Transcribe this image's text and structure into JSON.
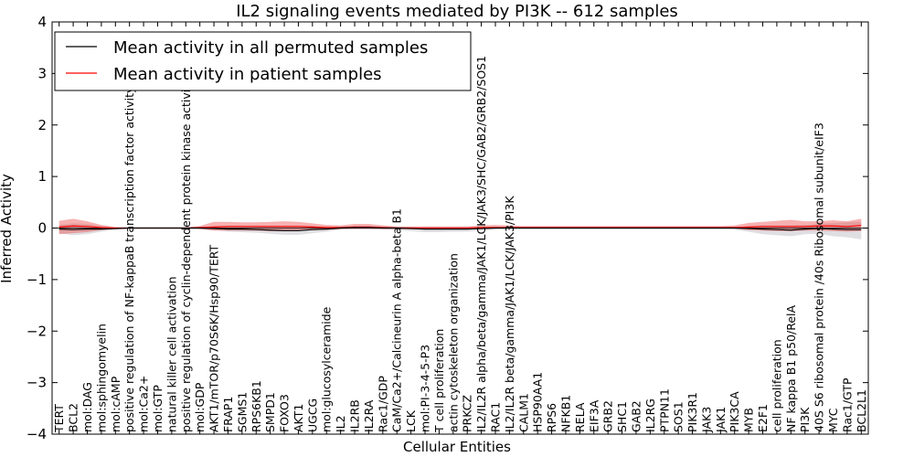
{
  "chart_data": {
    "type": "line",
    "title": "IL2 signaling events mediated by PI3K -- 612 samples",
    "xlabel": "Cellular Entities",
    "ylabel": "Inferred Activity",
    "ylim": [
      -4,
      4
    ],
    "yticks": [
      -4,
      -3,
      -2,
      -1,
      0,
      1,
      2,
      3,
      4
    ],
    "ytick_labels": [
      "−4",
      "−3",
      "−2",
      "−1",
      "0",
      "1",
      "2",
      "3",
      "4"
    ],
    "grid": false,
    "legend_position": "top-left",
    "categories": [
      "TERT",
      "BCL2",
      "mol:DAG",
      "mol:sphingomyelin",
      "mol:cAMP",
      "positive regulation of NF-kappaB transcription factor activity",
      "mol:Ca2+",
      "mol:GTP",
      "natural killer cell activation",
      "positive regulation of cyclin-dependent protein kinase activity",
      "mol:GDP",
      "AKT1/mTOR/p70S6K/Hsp90/TERT",
      "FRAP1",
      "SGMS1",
      "RPS6KB1",
      "SMPD1",
      "FOXO3",
      "AKT1",
      "UGCG",
      "mol:glucosylceramide",
      "IL2",
      "IL2RB",
      "IL2RA",
      "Rac1/GDP",
      "CaM/Ca2+/Calcineurin A alpha-beta B1",
      "LCK",
      "mol:PI-3-4-5-P3",
      "T cell proliferation",
      "actin cytoskeleton organization",
      "PRKCZ",
      "IL2/IL2R alpha/beta/gamma/JAK1/LCK/JAK3/SHC/GAB2/GRB2/SOS1",
      "RAC1",
      "IL2/IL2R beta/gamma/JAK1/LCK/JAK3/PI3K",
      "CALM1",
      "HSP90AA1",
      "RPS6",
      "NFKB1",
      "RELA",
      "EIF3A",
      "GRB2",
      "SHC1",
      "GAB2",
      "IL2RG",
      "PTPN11",
      "SOS1",
      "PIK3R1",
      "JAK3",
      "JAK1",
      "PIK3CA",
      "MYB",
      "E2F1",
      "cell proliferation",
      "NF kappa B1 p50/RelA",
      "PI3K",
      "40S S6 ribosomal protein /40s Ribosomal subunit/eIF3",
      "MYC",
      "Rac1/GTP",
      "BCL2L1"
    ],
    "series": [
      {
        "name": "Mean activity in all permuted samples",
        "color": "#000000",
        "values": [
          -0.02,
          -0.03,
          -0.02,
          -0.02,
          -0.01,
          0.0,
          0.0,
          0.0,
          0.0,
          0.0,
          0.0,
          -0.01,
          -0.02,
          -0.02,
          -0.03,
          -0.04,
          -0.05,
          -0.05,
          -0.03,
          -0.02,
          0.0,
          0.01,
          0.01,
          0.0,
          0.0,
          -0.01,
          -0.02,
          -0.02,
          -0.02,
          -0.02,
          -0.01,
          0.0,
          0.0,
          0.0,
          0.0,
          0.0,
          0.0,
          0.0,
          0.0,
          0.0,
          0.0,
          0.0,
          0.0,
          0.0,
          0.0,
          0.0,
          0.0,
          0.0,
          0.0,
          -0.01,
          -0.02,
          -0.03,
          -0.04,
          -0.02,
          -0.01,
          -0.02,
          -0.03,
          -0.03
        ],
        "band_lower": [
          -0.1,
          -0.14,
          -0.12,
          -0.07,
          -0.03,
          -0.01,
          -0.01,
          -0.01,
          -0.01,
          -0.01,
          -0.02,
          -0.04,
          -0.07,
          -0.08,
          -0.09,
          -0.11,
          -0.13,
          -0.13,
          -0.1,
          -0.07,
          -0.03,
          -0.02,
          -0.02,
          -0.03,
          -0.04,
          -0.06,
          -0.08,
          -0.08,
          -0.07,
          -0.07,
          -0.05,
          -0.03,
          -0.02,
          -0.02,
          -0.02,
          -0.02,
          -0.02,
          -0.02,
          -0.02,
          -0.02,
          -0.02,
          -0.02,
          -0.02,
          -0.02,
          -0.02,
          -0.02,
          -0.02,
          -0.02,
          -0.03,
          -0.07,
          -0.12,
          -0.14,
          -0.16,
          -0.12,
          -0.11,
          -0.16,
          -0.18,
          -0.22
        ],
        "band_upper": [
          0.06,
          0.09,
          0.08,
          0.04,
          0.01,
          0.01,
          0.01,
          0.01,
          0.01,
          0.01,
          0.02,
          0.02,
          0.03,
          0.03,
          0.04,
          0.04,
          0.04,
          0.04,
          0.04,
          0.03,
          0.03,
          0.04,
          0.04,
          0.03,
          0.02,
          0.02,
          0.02,
          0.02,
          0.02,
          0.02,
          0.02,
          0.02,
          0.02,
          0.02,
          0.02,
          0.02,
          0.02,
          0.02,
          0.02,
          0.02,
          0.02,
          0.02,
          0.02,
          0.02,
          0.02,
          0.02,
          0.02,
          0.02,
          0.02,
          0.03,
          0.05,
          0.05,
          0.05,
          0.06,
          0.08,
          0.1,
          0.11,
          0.12
        ]
      },
      {
        "name": "Mean activity in patient samples",
        "color": "#ff0000",
        "values": [
          0.02,
          0.04,
          0.03,
          0.01,
          0.0,
          0.0,
          0.0,
          0.0,
          0.0,
          0.0,
          0.01,
          0.02,
          0.03,
          0.03,
          0.03,
          0.03,
          0.03,
          0.03,
          0.02,
          0.01,
          0.01,
          0.02,
          0.02,
          0.01,
          0.0,
          0.0,
          0.0,
          0.0,
          0.0,
          0.0,
          0.01,
          0.01,
          0.01,
          0.01,
          0.01,
          0.01,
          0.01,
          0.01,
          0.01,
          0.01,
          0.01,
          0.01,
          0.01,
          0.01,
          0.01,
          0.01,
          0.01,
          0.01,
          0.01,
          0.02,
          0.03,
          0.03,
          0.03,
          0.03,
          0.04,
          0.04,
          0.03,
          0.05
        ],
        "band_lower": [
          -0.12,
          -0.1,
          -0.08,
          -0.04,
          -0.02,
          -0.01,
          -0.01,
          -0.01,
          -0.01,
          -0.01,
          -0.02,
          -0.05,
          -0.05,
          -0.05,
          -0.05,
          -0.06,
          -0.06,
          -0.05,
          -0.04,
          -0.03,
          -0.02,
          -0.02,
          -0.02,
          -0.02,
          -0.02,
          -0.02,
          -0.02,
          -0.02,
          -0.02,
          -0.02,
          -0.02,
          -0.01,
          -0.01,
          -0.01,
          -0.01,
          -0.01,
          -0.01,
          -0.01,
          -0.01,
          -0.01,
          -0.01,
          -0.01,
          -0.01,
          -0.01,
          -0.01,
          -0.01,
          -0.01,
          -0.01,
          -0.01,
          -0.04,
          -0.05,
          -0.06,
          -0.06,
          -0.05,
          -0.05,
          -0.06,
          -0.07,
          -0.06
        ],
        "band_upper": [
          0.14,
          0.18,
          0.13,
          0.06,
          0.02,
          0.01,
          0.01,
          0.01,
          0.01,
          0.01,
          0.04,
          0.12,
          0.12,
          0.11,
          0.11,
          0.12,
          0.13,
          0.12,
          0.09,
          0.06,
          0.05,
          0.08,
          0.08,
          0.05,
          0.03,
          0.03,
          0.03,
          0.03,
          0.03,
          0.03,
          0.05,
          0.06,
          0.05,
          0.04,
          0.04,
          0.04,
          0.04,
          0.04,
          0.04,
          0.04,
          0.04,
          0.04,
          0.04,
          0.04,
          0.04,
          0.04,
          0.04,
          0.04,
          0.05,
          0.1,
          0.12,
          0.14,
          0.16,
          0.13,
          0.13,
          0.15,
          0.13,
          0.18
        ]
      }
    ]
  }
}
